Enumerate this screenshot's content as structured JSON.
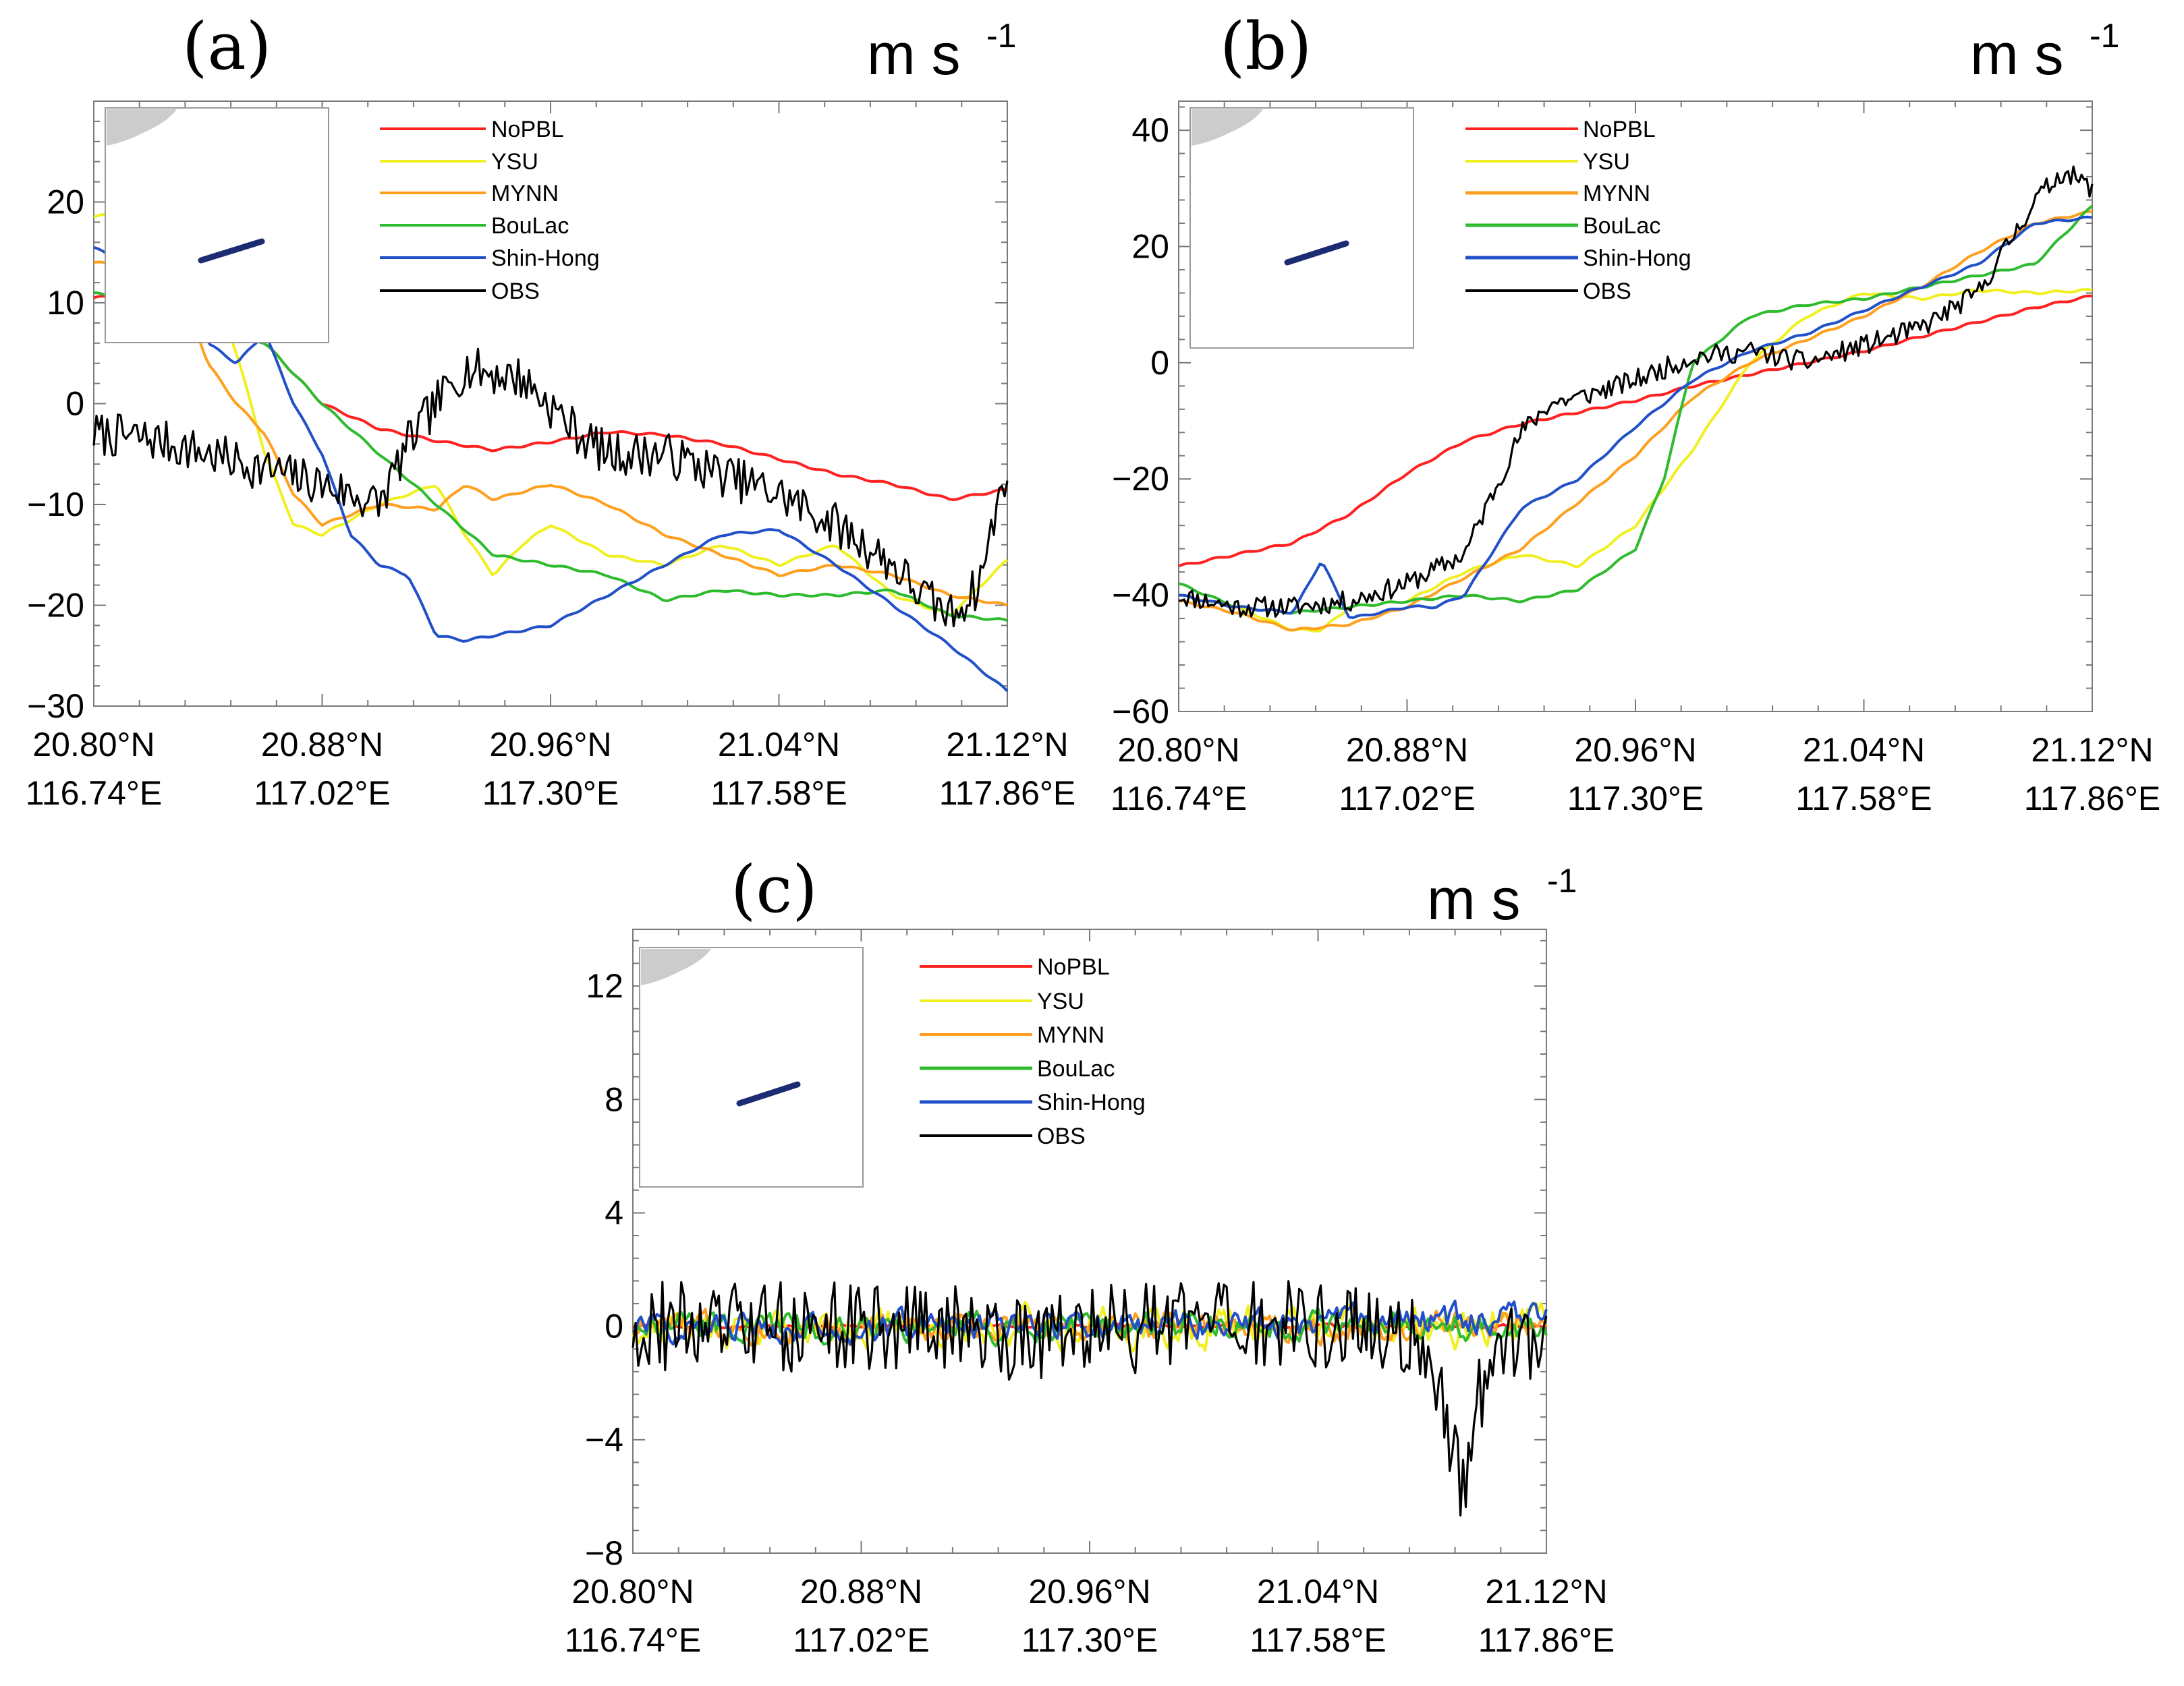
{
  "figure": {
    "x_axis_note": "transect from 20.80N,116.74E to 21.12N,117.86E"
  },
  "chart_data": [
    {
      "id": "a",
      "type": "line",
      "panel_label": "(a)",
      "unit": "m s",
      "unit_exp": "-1",
      "ylim": [
        -30,
        30
      ],
      "yticks": [
        -30,
        -20,
        -10,
        0,
        10,
        20
      ],
      "ytick_labels": [
        "−30",
        "−20",
        "−10",
        "0",
        "10",
        "20"
      ],
      "xlim": [
        20.8,
        21.12
      ],
      "xticks": [
        20.8,
        20.88,
        20.96,
        21.04,
        21.12
      ],
      "xtick_lat": [
        "20.80°N",
        "20.88°N",
        "20.96°N",
        "21.04°N",
        "21.12°N"
      ],
      "xtick_lon": [
        "116.74°E",
        "117.02°E",
        "117.30°E",
        "117.58°E",
        "117.86°E"
      ],
      "series": [
        {
          "name": "NoPBL",
          "color": "#ff2020",
          "x": [
            20.8,
            20.82,
            20.84,
            20.86,
            20.88,
            20.9,
            20.92,
            20.94,
            20.96,
            20.98,
            21.0,
            21.02,
            21.04,
            21.06,
            21.08,
            21.1,
            21.12
          ],
          "y": [
            10.5,
            10.9,
            9.5,
            6,
            0,
            -2.5,
            -3.7,
            -4.6,
            -3.8,
            -2.8,
            -3.1,
            -4,
            -5.5,
            -7,
            -8,
            -9.5,
            -8.5
          ]
        },
        {
          "name": "YSU",
          "color": "#f0f020",
          "x": [
            20.8,
            20.81,
            20.82,
            20.83,
            20.84,
            20.85,
            20.86,
            20.87,
            20.88,
            20.9,
            20.92,
            20.93,
            20.94,
            20.95,
            20.96,
            20.98,
            21.0,
            21.02,
            21.04,
            21.06,
            21.08,
            21.1,
            21.12
          ],
          "y": [
            18.5,
            19,
            18.5,
            16,
            13,
            5,
            -5,
            -12,
            -13,
            -10,
            -8,
            -13,
            -17,
            -14,
            -12,
            -15,
            -16,
            -14,
            -16,
            -14,
            -19,
            -21,
            -15.5
          ]
        },
        {
          "name": "MYNN",
          "color": "#ff9f1e",
          "x": [
            20.8,
            20.82,
            20.83,
            20.84,
            20.85,
            20.86,
            20.87,
            20.88,
            20.9,
            20.92,
            20.93,
            20.94,
            20.96,
            20.98,
            21.0,
            21.02,
            21.04,
            21.06,
            21.08,
            21.1,
            21.12
          ],
          "y": [
            14,
            13.5,
            12,
            4,
            0,
            -3,
            -9,
            -12,
            -10,
            -10.5,
            -8,
            -9.5,
            -8,
            -10,
            -13,
            -15,
            -17,
            -16,
            -17,
            -19,
            -20
          ]
        },
        {
          "name": "BouLac",
          "color": "#2fbb2f",
          "x": [
            20.8,
            20.82,
            20.84,
            20.86,
            20.88,
            20.9,
            20.92,
            20.94,
            20.96,
            20.98,
            21.0,
            21.02,
            21.04,
            21.06,
            21.08,
            21.1,
            21.12
          ],
          "y": [
            11,
            9.5,
            8,
            6,
            0,
            -5,
            -10,
            -15,
            -16,
            -17,
            -19.5,
            -18.5,
            -19,
            -19,
            -18.5,
            -21,
            -21.5
          ]
        },
        {
          "name": "Shin-Hong",
          "color": "#2250c8",
          "x": [
            20.8,
            20.81,
            20.82,
            20.83,
            20.84,
            20.85,
            20.86,
            20.87,
            20.88,
            20.89,
            20.9,
            20.91,
            20.92,
            20.93,
            20.94,
            20.96,
            20.98,
            21.0,
            21.02,
            21.04,
            21.06,
            21.08,
            21.1,
            21.12
          ],
          "y": [
            15.5,
            14,
            11.5,
            14,
            6,
            4,
            7,
            0,
            -5,
            -13,
            -16,
            -17,
            -23,
            -23.5,
            -23,
            -22,
            -19,
            -16,
            -13,
            -12.5,
            -16,
            -20,
            -24,
            -28.5
          ]
        },
        {
          "name": "OBS",
          "color": "#000000",
          "noisy": true,
          "noise_amp": 2.2,
          "seed": 7,
          "x": [
            20.8,
            20.82,
            20.84,
            20.86,
            20.88,
            20.9,
            20.91,
            20.92,
            20.93,
            20.95,
            20.97,
            20.98,
            21.0,
            21.02,
            21.04,
            21.06,
            21.08,
            21.09,
            21.1,
            21.11,
            21.12
          ],
          "y": [
            -3,
            -3.5,
            -5,
            -6.5,
            -8,
            -10,
            -4,
            0,
            3.5,
            2.5,
            -3,
            -5,
            -5,
            -7,
            -9,
            -12,
            -16,
            -19,
            -21,
            -18,
            -6
          ]
        }
      ]
    },
    {
      "id": "b",
      "type": "line",
      "panel_label": "(b)",
      "unit": "m s",
      "unit_exp": "-1",
      "ylim": [
        -60,
        45
      ],
      "yticks": [
        -60,
        -40,
        -20,
        0,
        20,
        40
      ],
      "ytick_labels": [
        "−60",
        "−40",
        "−20",
        "0",
        "20",
        "40"
      ],
      "xlim": [
        20.8,
        21.12
      ],
      "xticks": [
        20.8,
        20.88,
        20.96,
        21.04,
        21.12
      ],
      "xtick_lat": [
        "20.80°N",
        "20.88°N",
        "20.96°N",
        "21.04°N",
        "21.12°N"
      ],
      "xtick_lon": [
        "116.74°E",
        "117.02°E",
        "117.30°E",
        "117.58°E",
        "117.86°E"
      ],
      "series": [
        {
          "name": "NoPBL",
          "color": "#ff2020",
          "x": [
            20.8,
            20.82,
            20.84,
            20.86,
            20.88,
            20.9,
            20.92,
            20.94,
            20.96,
            20.98,
            21.0,
            21.02,
            21.04,
            21.06,
            21.08,
            21.1,
            21.12
          ],
          "y": [
            -35,
            -33,
            -31,
            -26,
            -19,
            -13.5,
            -10.5,
            -8.5,
            -6.5,
            -4,
            -2,
            0,
            2,
            4.5,
            7,
            9.5,
            11.5
          ]
        },
        {
          "name": "YSU",
          "color": "#f0f020",
          "x": [
            20.8,
            20.82,
            20.83,
            20.84,
            20.85,
            20.86,
            20.88,
            20.9,
            20.92,
            20.94,
            20.96,
            20.98,
            21.0,
            21.02,
            21.04,
            21.06,
            21.08,
            21.1,
            21.12
          ],
          "y": [
            -40,
            -42,
            -44,
            -46,
            -46,
            -42,
            -41,
            -36,
            -33,
            -35,
            -28,
            -15,
            0,
            8,
            12,
            11,
            12.5,
            12,
            12.5
          ]
        },
        {
          "name": "MYNN",
          "color": "#ff9f1e",
          "x": [
            20.8,
            20.82,
            20.84,
            20.86,
            20.88,
            20.9,
            20.92,
            20.94,
            20.96,
            20.98,
            21.0,
            21.02,
            21.04,
            21.06,
            21.08,
            21.1,
            21.12
          ],
          "y": [
            -41,
            -43,
            -46,
            -45,
            -42,
            -37,
            -32,
            -24,
            -16,
            -6,
            0,
            4,
            8,
            13,
            19,
            24,
            26
          ]
        },
        {
          "name": "BouLac",
          "color": "#2fbb2f",
          "x": [
            20.8,
            20.82,
            20.84,
            20.86,
            20.88,
            20.9,
            20.92,
            20.94,
            20.96,
            20.97,
            20.98,
            21.0,
            21.02,
            21.04,
            21.06,
            21.08,
            21.1,
            21.12
          ],
          "y": [
            -38,
            -42,
            -43,
            -42,
            -41,
            -40,
            -41,
            -39,
            -32,
            -20,
            0,
            8,
            10,
            11,
            13,
            15,
            17,
            27
          ]
        },
        {
          "name": "Shin-Hong",
          "color": "#2250c8",
          "x": [
            20.8,
            20.82,
            20.84,
            20.85,
            20.86,
            20.88,
            20.89,
            20.9,
            20.92,
            20.94,
            20.96,
            20.98,
            21.0,
            21.02,
            21.04,
            21.06,
            21.08,
            21.1,
            21.12
          ],
          "y": [
            -40,
            -42,
            -43,
            -34,
            -44,
            -42,
            -42,
            -40,
            -25,
            -20,
            -11,
            -3,
            2,
            5,
            9,
            13,
            17,
            24,
            25
          ]
        },
        {
          "name": "OBS",
          "color": "#000000",
          "noisy": true,
          "noise_amp": 1.8,
          "seed": 11,
          "x": [
            20.8,
            20.82,
            20.84,
            20.86,
            20.88,
            20.9,
            20.92,
            20.93,
            20.94,
            20.96,
            20.98,
            21.0,
            21.02,
            21.04,
            21.06,
            21.08,
            21.09,
            21.1,
            21.11,
            21.12
          ],
          "y": [
            -40,
            -42,
            -42,
            -41,
            -38,
            -33,
            -12,
            -7,
            -6,
            -3,
            1,
            2,
            0,
            3,
            6,
            12,
            20,
            28,
            33,
            30
          ]
        }
      ]
    },
    {
      "id": "c",
      "type": "line",
      "panel_label": "(c)",
      "unit": "m s",
      "unit_exp": "-1",
      "ylim": [
        -8,
        14
      ],
      "yticks": [
        -8,
        -4,
        0,
        4,
        8,
        12
      ],
      "ytick_labels": [
        "−8",
        "−4",
        "0",
        "4",
        "8",
        "12"
      ],
      "xlim": [
        20.8,
        21.12
      ],
      "xticks": [
        20.8,
        20.88,
        20.96,
        21.04,
        21.12
      ],
      "xtick_lat": [
        "20.80°N",
        "20.88°N",
        "20.96°N",
        "21.04°N",
        "21.12°N"
      ],
      "xtick_lon": [
        "116.74°E",
        "117.02°E",
        "117.30°E",
        "117.58°E",
        "117.86°E"
      ],
      "series": [
        {
          "name": "NoPBL",
          "color": "#ff2020",
          "noisy": true,
          "noise_amp": 0.12,
          "seed": 3,
          "x": [
            20.8,
            20.96,
            21.12
          ],
          "y": [
            0,
            0,
            0
          ]
        },
        {
          "name": "YSU",
          "color": "#f0f020",
          "noisy": true,
          "noise_amp": 1.2,
          "seed": 21,
          "x": [
            20.8,
            20.88,
            20.92,
            21.12
          ],
          "y": [
            0,
            0,
            0,
            0
          ]
        },
        {
          "name": "MYNN",
          "color": "#ff9f1e",
          "noisy": true,
          "noise_amp": 0.9,
          "seed": 33,
          "x": [
            20.8,
            20.88,
            20.96,
            21.12
          ],
          "y": [
            0,
            0,
            0,
            0
          ]
        },
        {
          "name": "BouLac",
          "color": "#2fbb2f",
          "noisy": true,
          "noise_amp": 0.9,
          "seed": 45,
          "x": [
            20.8,
            20.9,
            21.12
          ],
          "y": [
            0,
            0,
            0
          ]
        },
        {
          "name": "Shin-Hong",
          "color": "#2250c8",
          "noisy": true,
          "noise_amp": 0.9,
          "seed": 57,
          "x": [
            20.8,
            20.96,
            21.12
          ],
          "y": [
            0,
            0,
            0.3
          ]
        },
        {
          "name": "OBS",
          "color": "#000000",
          "noisy": true,
          "noise_amp": 1.6,
          "seed": 69,
          "x": [
            20.8,
            20.86,
            20.9,
            20.93,
            21.0,
            21.06,
            21.08,
            21.09,
            21.1,
            21.12
          ],
          "y": [
            0,
            0,
            0,
            -0.3,
            0,
            0,
            -1,
            -6,
            -1,
            0
          ]
        }
      ]
    }
  ]
}
